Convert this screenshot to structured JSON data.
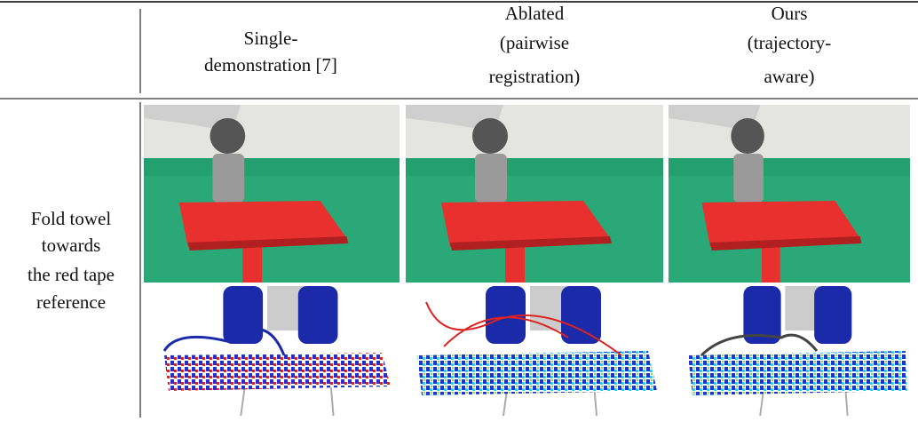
{
  "header": {
    "columns": [
      {
        "lines": [
          "Single-",
          "demonstration [7]"
        ]
      },
      {
        "lines": [
          "Ablated",
          "(pairwise",
          "registration)"
        ]
      },
      {
        "lines": [
          "Ours",
          "(trajectory-",
          "aware)"
        ]
      }
    ]
  },
  "rows": [
    {
      "label_lines": [
        "Fold towel",
        "towards",
        "the red tape",
        "reference"
      ]
    }
  ]
}
